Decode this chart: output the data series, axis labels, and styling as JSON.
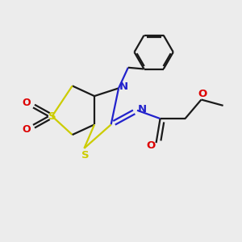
{
  "background_color": "#ececec",
  "bond_color": "#1a1a1a",
  "sulfur_color": "#cccc00",
  "nitrogen_color": "#2222cc",
  "oxygen_color": "#dd0000",
  "line_width": 1.6,
  "fig_w": 3.0,
  "fig_h": 3.0,
  "dpi": 100,
  "xlim": [
    0,
    10
  ],
  "ylim": [
    0,
    10
  ]
}
